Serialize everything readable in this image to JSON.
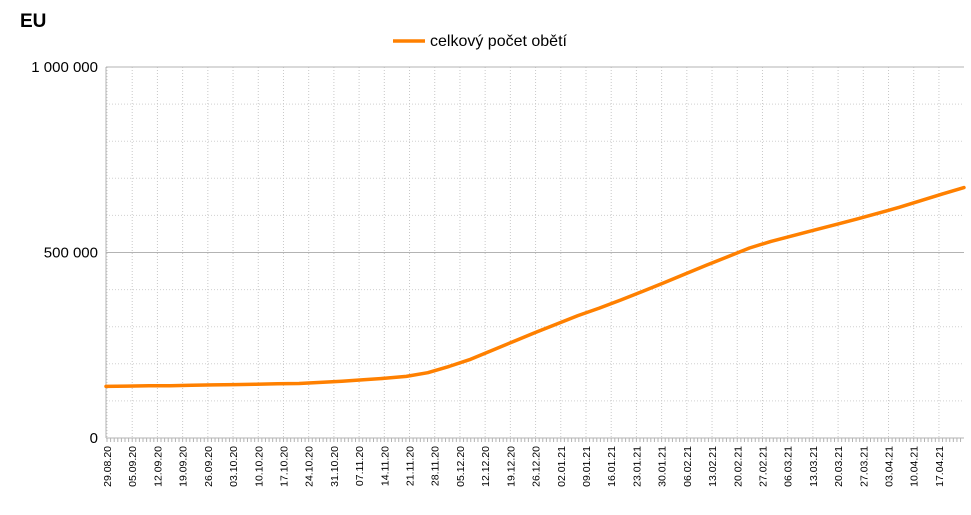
{
  "chart_data": {
    "type": "line",
    "title": "EU",
    "xlabel": "",
    "ylabel": "",
    "ylim": [
      0,
      1000000
    ],
    "yticks": [
      {
        "value": 0,
        "label": "0"
      },
      {
        "value": 500000,
        "label": "500 000"
      },
      {
        "value": 1000000,
        "label": "1 000 000"
      }
    ],
    "xtick_labels": [
      "29.08.20",
      "05.09.20",
      "12.09.20",
      "19.09.20",
      "26.09.20",
      "03.10.20",
      "10.10.20",
      "17.10.20",
      "24.10.20",
      "31.10.20",
      "07.11.20",
      "14.11.20",
      "21.11.20",
      "28.11.20",
      "05.12.20",
      "12.12.20",
      "19.12.20",
      "26.12.20",
      "02.01.21",
      "09.01.21",
      "16.01.21",
      "23.01.21",
      "30.01.21",
      "06.02.21",
      "13.02.21",
      "20.02.21",
      "27.02.21",
      "06.03.21",
      "13.03.21",
      "20.03.21",
      "27.03.21",
      "03.04.21",
      "10.04.21",
      "17.04.21"
    ],
    "grid": true,
    "legend": "top-center",
    "series": [
      {
        "name": "celkový počet obětí",
        "color": "#ff8000",
        "values": [
          139000,
          140000,
          141000,
          141000,
          142000,
          143000,
          144000,
          145000,
          146000,
          147000,
          150000,
          153000,
          157000,
          161000,
          166000,
          176000,
          193000,
          212000,
          236000,
          260000,
          284000,
          307000,
          330000,
          350000,
          372000,
          395000,
          418000,
          442000,
          466000,
          489000,
          512000,
          530000,
          545000,
          560000,
          575000,
          590000,
          606000,
          622000,
          640000,
          658000,
          675000
        ]
      }
    ]
  }
}
